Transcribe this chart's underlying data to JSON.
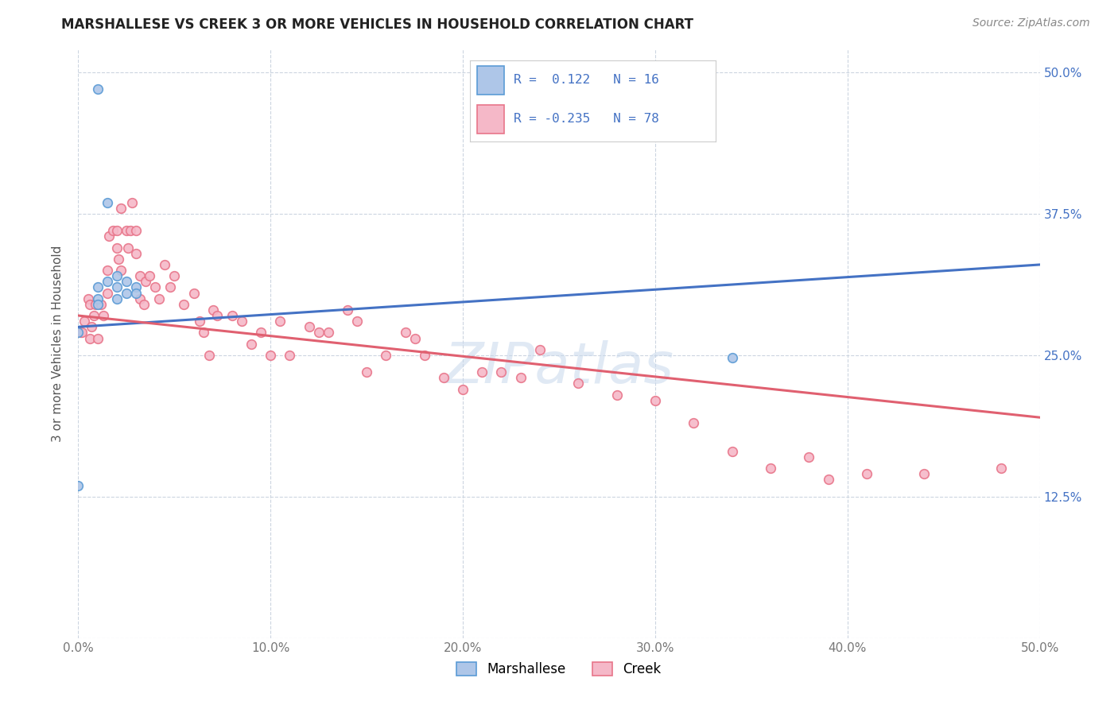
{
  "title": "MARSHALLESE VS CREEK 3 OR MORE VEHICLES IN HOUSEHOLD CORRELATION CHART",
  "source": "Source: ZipAtlas.com",
  "ylabel": "3 or more Vehicles in Household",
  "xlim": [
    0.0,
    0.5
  ],
  "ylim": [
    0.0,
    0.52
  ],
  "yticks": [
    0.0,
    0.125,
    0.25,
    0.375,
    0.5
  ],
  "ytick_labels": [
    "",
    "12.5%",
    "25.0%",
    "37.5%",
    "50.0%"
  ],
  "xticks": [
    0.0,
    0.1,
    0.2,
    0.3,
    0.4,
    0.5
  ],
  "xtick_labels": [
    "0.0%",
    "10.0%",
    "20.0%",
    "30.0%",
    "40.0%",
    "50.0%"
  ],
  "watermark": "ZIPatlas",
  "legend_marshallese_R": " 0.122",
  "legend_marshallese_N": "16",
  "legend_creek_R": "-0.235",
  "legend_creek_N": "78",
  "marshallese_fill": "#aec6e8",
  "creek_fill": "#f5b8c8",
  "marshallese_edge": "#5b9bd5",
  "creek_edge": "#e8758a",
  "marshallese_line_color": "#4472c4",
  "creek_line_color": "#e06070",
  "marshallese_x": [
    0.01,
    0.0,
    0.01,
    0.01,
    0.01,
    0.015,
    0.02,
    0.02,
    0.02,
    0.025,
    0.025,
    0.03,
    0.03,
    0.0,
    0.015,
    0.34
  ],
  "marshallese_y": [
    0.485,
    0.27,
    0.3,
    0.295,
    0.31,
    0.315,
    0.32,
    0.3,
    0.31,
    0.315,
    0.305,
    0.31,
    0.305,
    0.135,
    0.385,
    0.248
  ],
  "creek_x": [
    0.001,
    0.002,
    0.003,
    0.005,
    0.006,
    0.006,
    0.007,
    0.008,
    0.009,
    0.01,
    0.012,
    0.013,
    0.015,
    0.015,
    0.016,
    0.018,
    0.02,
    0.02,
    0.021,
    0.022,
    0.022,
    0.025,
    0.026,
    0.027,
    0.028,
    0.03,
    0.03,
    0.032,
    0.032,
    0.034,
    0.035,
    0.037,
    0.04,
    0.042,
    0.045,
    0.048,
    0.05,
    0.055,
    0.06,
    0.063,
    0.065,
    0.068,
    0.07,
    0.072,
    0.08,
    0.085,
    0.09,
    0.095,
    0.1,
    0.105,
    0.11,
    0.12,
    0.125,
    0.13,
    0.14,
    0.145,
    0.15,
    0.16,
    0.17,
    0.175,
    0.18,
    0.19,
    0.2,
    0.21,
    0.22,
    0.23,
    0.24,
    0.26,
    0.28,
    0.3,
    0.32,
    0.34,
    0.36,
    0.38,
    0.39,
    0.41,
    0.44,
    0.48
  ],
  "creek_y": [
    0.27,
    0.27,
    0.28,
    0.3,
    0.295,
    0.265,
    0.275,
    0.285,
    0.295,
    0.265,
    0.295,
    0.285,
    0.325,
    0.305,
    0.355,
    0.36,
    0.36,
    0.345,
    0.335,
    0.325,
    0.38,
    0.36,
    0.345,
    0.36,
    0.385,
    0.36,
    0.34,
    0.32,
    0.3,
    0.295,
    0.315,
    0.32,
    0.31,
    0.3,
    0.33,
    0.31,
    0.32,
    0.295,
    0.305,
    0.28,
    0.27,
    0.25,
    0.29,
    0.285,
    0.285,
    0.28,
    0.26,
    0.27,
    0.25,
    0.28,
    0.25,
    0.275,
    0.27,
    0.27,
    0.29,
    0.28,
    0.235,
    0.25,
    0.27,
    0.265,
    0.25,
    0.23,
    0.22,
    0.235,
    0.235,
    0.23,
    0.255,
    0.225,
    0.215,
    0.21,
    0.19,
    0.165,
    0.15,
    0.16,
    0.14,
    0.145,
    0.145,
    0.15
  ],
  "background_color": "#ffffff",
  "grid_color": "#ccd5e0",
  "title_fontsize": 12,
  "source_fontsize": 10,
  "axis_label_fontsize": 11,
  "tick_fontsize": 11,
  "marker_size": 70,
  "marker_edge_width": 1.2,
  "line_width": 2.2,
  "marshallese_line_start_y": 0.275,
  "marshallese_line_end_y": 0.33,
  "creek_line_start_y": 0.285,
  "creek_line_end_y": 0.195
}
